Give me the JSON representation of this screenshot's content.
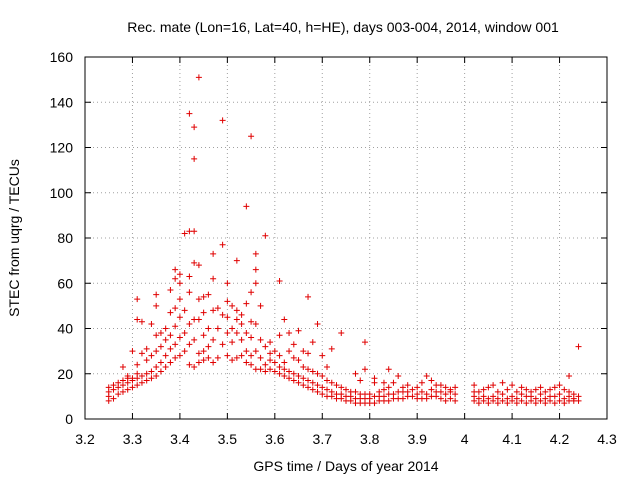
{
  "chart_data": {
    "type": "scatter",
    "title": "Rec. mate (Lon=16, Lat=40, h=HE), days 003-004, 2014, window 001",
    "xlabel": "GPS time / Days of year 2014",
    "ylabel": "STEC from uqrg / TECUs",
    "xlim": [
      3.2,
      4.3
    ],
    "ylim": [
      0,
      160
    ],
    "xticks": [
      3.2,
      3.3,
      3.4,
      3.5,
      3.6,
      3.7,
      3.8,
      3.9,
      4.0,
      4.1,
      4.2,
      4.3
    ],
    "xtick_labels": [
      "3.2",
      "3.3",
      "3.4",
      "3.5",
      "3.6",
      "3.7",
      "3.8",
      "3.9",
      "4",
      "4.1",
      "4.2",
      "4.3"
    ],
    "yticks": [
      0,
      20,
      40,
      60,
      80,
      100,
      120,
      140,
      160
    ],
    "ytick_labels": [
      "0",
      "20",
      "40",
      "60",
      "80",
      "100",
      "120",
      "140",
      "160"
    ],
    "grid": true,
    "marker": "+",
    "color": "#e00000",
    "points": [
      [
        3.25,
        8
      ],
      [
        3.25,
        10
      ],
      [
        3.25,
        12
      ],
      [
        3.25,
        14
      ],
      [
        3.26,
        9
      ],
      [
        3.26,
        13
      ],
      [
        3.26,
        15
      ],
      [
        3.27,
        11
      ],
      [
        3.27,
        14
      ],
      [
        3.27,
        16
      ],
      [
        3.28,
        12
      ],
      [
        3.28,
        15
      ],
      [
        3.28,
        17
      ],
      [
        3.28,
        23
      ],
      [
        3.29,
        13
      ],
      [
        3.29,
        16
      ],
      [
        3.29,
        18
      ],
      [
        3.29,
        19
      ],
      [
        3.3,
        14
      ],
      [
        3.3,
        17
      ],
      [
        3.3,
        18
      ],
      [
        3.3,
        30
      ],
      [
        3.31,
        15
      ],
      [
        3.31,
        18
      ],
      [
        3.31,
        20
      ],
      [
        3.31,
        24
      ],
      [
        3.31,
        44
      ],
      [
        3.31,
        53
      ],
      [
        3.32,
        16
      ],
      [
        3.32,
        19
      ],
      [
        3.32,
        29
      ],
      [
        3.32,
        43
      ],
      [
        3.33,
        17
      ],
      [
        3.33,
        20
      ],
      [
        3.33,
        26
      ],
      [
        3.33,
        31
      ],
      [
        3.34,
        18
      ],
      [
        3.34,
        21
      ],
      [
        3.34,
        28
      ],
      [
        3.34,
        42
      ],
      [
        3.35,
        19
      ],
      [
        3.35,
        23
      ],
      [
        3.35,
        30
      ],
      [
        3.35,
        37
      ],
      [
        3.35,
        50
      ],
      [
        3.35,
        55
      ],
      [
        3.36,
        21
      ],
      [
        3.36,
        25
      ],
      [
        3.36,
        32
      ],
      [
        3.36,
        38
      ],
      [
        3.37,
        23
      ],
      [
        3.37,
        28
      ],
      [
        3.37,
        35
      ],
      [
        3.37,
        40
      ],
      [
        3.38,
        25
      ],
      [
        3.38,
        31
      ],
      [
        3.38,
        37
      ],
      [
        3.38,
        47
      ],
      [
        3.38,
        57
      ],
      [
        3.39,
        27
      ],
      [
        3.39,
        33
      ],
      [
        3.39,
        41
      ],
      [
        3.39,
        49
      ],
      [
        3.39,
        62
      ],
      [
        3.39,
        66
      ],
      [
        3.4,
        28
      ],
      [
        3.4,
        36
      ],
      [
        3.4,
        45
      ],
      [
        3.4,
        53
      ],
      [
        3.4,
        60
      ],
      [
        3.4,
        64
      ],
      [
        3.41,
        30
      ],
      [
        3.41,
        38
      ],
      [
        3.41,
        48
      ],
      [
        3.41,
        82
      ],
      [
        3.42,
        24
      ],
      [
        3.42,
        33
      ],
      [
        3.42,
        42
      ],
      [
        3.42,
        56
      ],
      [
        3.42,
        63
      ],
      [
        3.42,
        83
      ],
      [
        3.42,
        135
      ],
      [
        3.43,
        23
      ],
      [
        3.43,
        35
      ],
      [
        3.43,
        44
      ],
      [
        3.43,
        69
      ],
      [
        3.43,
        83
      ],
      [
        3.43,
        115
      ],
      [
        3.43,
        129
      ],
      [
        3.44,
        25
      ],
      [
        3.44,
        29
      ],
      [
        3.44,
        44
      ],
      [
        3.44,
        53
      ],
      [
        3.44,
        68
      ],
      [
        3.44,
        151
      ],
      [
        3.45,
        26
      ],
      [
        3.45,
        30
      ],
      [
        3.45,
        37
      ],
      [
        3.45,
        47
      ],
      [
        3.45,
        54
      ],
      [
        3.46,
        27
      ],
      [
        3.46,
        32
      ],
      [
        3.46,
        40
      ],
      [
        3.46,
        55
      ],
      [
        3.47,
        25
      ],
      [
        3.47,
        35
      ],
      [
        3.47,
        48
      ],
      [
        3.47,
        62
      ],
      [
        3.47,
        73
      ],
      [
        3.48,
        27
      ],
      [
        3.48,
        40
      ],
      [
        3.48,
        49
      ],
      [
        3.49,
        33
      ],
      [
        3.49,
        46
      ],
      [
        3.49,
        77
      ],
      [
        3.49,
        132
      ],
      [
        3.5,
        28
      ],
      [
        3.5,
        38
      ],
      [
        3.5,
        45
      ],
      [
        3.5,
        52
      ],
      [
        3.5,
        60
      ],
      [
        3.51,
        26
      ],
      [
        3.51,
        34
      ],
      [
        3.51,
        40
      ],
      [
        3.51,
        50
      ],
      [
        3.52,
        27
      ],
      [
        3.52,
        38
      ],
      [
        3.52,
        44
      ],
      [
        3.52,
        48
      ],
      [
        3.52,
        70
      ],
      [
        3.53,
        28
      ],
      [
        3.53,
        35
      ],
      [
        3.53,
        42
      ],
      [
        3.53,
        46
      ],
      [
        3.54,
        25
      ],
      [
        3.54,
        30
      ],
      [
        3.54,
        38
      ],
      [
        3.54,
        51
      ],
      [
        3.54,
        94
      ],
      [
        3.55,
        24
      ],
      [
        3.55,
        28
      ],
      [
        3.55,
        36
      ],
      [
        3.55,
        43
      ],
      [
        3.55,
        56
      ],
      [
        3.55,
        125
      ],
      [
        3.56,
        22
      ],
      [
        3.56,
        30
      ],
      [
        3.56,
        42
      ],
      [
        3.56,
        60
      ],
      [
        3.56,
        66
      ],
      [
        3.56,
        73
      ],
      [
        3.57,
        22
      ],
      [
        3.57,
        27
      ],
      [
        3.57,
        35
      ],
      [
        3.57,
        50
      ],
      [
        3.58,
        21
      ],
      [
        3.58,
        24
      ],
      [
        3.58,
        32
      ],
      [
        3.58,
        81
      ],
      [
        3.59,
        22
      ],
      [
        3.59,
        26
      ],
      [
        3.59,
        29
      ],
      [
        3.59,
        34
      ],
      [
        3.6,
        21
      ],
      [
        3.6,
        25
      ],
      [
        3.6,
        30
      ],
      [
        3.61,
        20
      ],
      [
        3.61,
        23
      ],
      [
        3.61,
        28
      ],
      [
        3.61,
        37
      ],
      [
        3.61,
        61
      ],
      [
        3.62,
        19
      ],
      [
        3.62,
        22
      ],
      [
        3.62,
        25
      ],
      [
        3.62,
        44
      ],
      [
        3.63,
        18
      ],
      [
        3.63,
        21
      ],
      [
        3.63,
        30
      ],
      [
        3.63,
        38
      ],
      [
        3.64,
        17
      ],
      [
        3.64,
        20
      ],
      [
        3.64,
        27
      ],
      [
        3.64,
        33
      ],
      [
        3.65,
        16
      ],
      [
        3.65,
        19
      ],
      [
        3.65,
        26
      ],
      [
        3.65,
        39
      ],
      [
        3.66,
        15
      ],
      [
        3.66,
        18
      ],
      [
        3.66,
        23
      ],
      [
        3.66,
        30
      ],
      [
        3.67,
        14
      ],
      [
        3.67,
        17
      ],
      [
        3.67,
        22
      ],
      [
        3.67,
        29
      ],
      [
        3.67,
        54
      ],
      [
        3.68,
        13
      ],
      [
        3.68,
        16
      ],
      [
        3.68,
        21
      ],
      [
        3.68,
        34
      ],
      [
        3.69,
        12
      ],
      [
        3.69,
        15
      ],
      [
        3.69,
        20
      ],
      [
        3.69,
        42
      ],
      [
        3.7,
        11
      ],
      [
        3.7,
        14
      ],
      [
        3.7,
        19
      ],
      [
        3.7,
        28
      ],
      [
        3.71,
        10
      ],
      [
        3.71,
        13
      ],
      [
        3.71,
        17
      ],
      [
        3.71,
        23
      ],
      [
        3.72,
        10
      ],
      [
        3.72,
        12
      ],
      [
        3.72,
        16
      ],
      [
        3.72,
        31
      ],
      [
        3.73,
        9
      ],
      [
        3.73,
        11
      ],
      [
        3.73,
        15
      ],
      [
        3.74,
        9
      ],
      [
        3.74,
        11
      ],
      [
        3.74,
        14
      ],
      [
        3.74,
        38
      ],
      [
        3.75,
        8
      ],
      [
        3.75,
        10
      ],
      [
        3.75,
        13
      ],
      [
        3.76,
        8
      ],
      [
        3.76,
        10
      ],
      [
        3.76,
        12
      ],
      [
        3.77,
        7
      ],
      [
        3.77,
        9
      ],
      [
        3.77,
        12
      ],
      [
        3.77,
        20
      ],
      [
        3.78,
        7
      ],
      [
        3.78,
        9
      ],
      [
        3.78,
        11
      ],
      [
        3.78,
        17
      ],
      [
        3.79,
        7
      ],
      [
        3.79,
        9
      ],
      [
        3.79,
        11
      ],
      [
        3.79,
        22
      ],
      [
        3.79,
        34
      ],
      [
        3.8,
        7
      ],
      [
        3.8,
        9
      ],
      [
        3.8,
        11
      ],
      [
        3.81,
        7
      ],
      [
        3.81,
        10
      ],
      [
        3.81,
        16
      ],
      [
        3.81,
        18
      ],
      [
        3.82,
        8
      ],
      [
        3.82,
        10
      ],
      [
        3.82,
        12
      ],
      [
        3.83,
        8
      ],
      [
        3.83,
        10
      ],
      [
        3.83,
        13
      ],
      [
        3.83,
        16
      ],
      [
        3.84,
        8
      ],
      [
        3.84,
        11
      ],
      [
        3.84,
        14
      ],
      [
        3.84,
        22
      ],
      [
        3.85,
        9
      ],
      [
        3.85,
        11
      ],
      [
        3.85,
        16
      ],
      [
        3.86,
        9
      ],
      [
        3.86,
        12
      ],
      [
        3.86,
        19
      ],
      [
        3.87,
        9
      ],
      [
        3.87,
        12
      ],
      [
        3.87,
        14
      ],
      [
        3.88,
        10
      ],
      [
        3.88,
        12
      ],
      [
        3.88,
        15
      ],
      [
        3.89,
        10
      ],
      [
        3.89,
        13
      ],
      [
        3.9,
        9
      ],
      [
        3.9,
        11
      ],
      [
        3.9,
        14
      ],
      [
        3.91,
        9
      ],
      [
        3.91,
        12
      ],
      [
        3.91,
        16
      ],
      [
        3.92,
        9
      ],
      [
        3.92,
        11
      ],
      [
        3.92,
        19
      ],
      [
        3.93,
        10
      ],
      [
        3.93,
        13
      ],
      [
        3.93,
        17
      ],
      [
        3.94,
        10
      ],
      [
        3.94,
        12
      ],
      [
        3.94,
        15
      ],
      [
        3.95,
        9
      ],
      [
        3.95,
        12
      ],
      [
        3.95,
        15
      ],
      [
        3.96,
        8
      ],
      [
        3.96,
        11
      ],
      [
        3.96,
        14
      ],
      [
        3.97,
        9
      ],
      [
        3.97,
        12
      ],
      [
        3.97,
        13
      ],
      [
        3.98,
        8
      ],
      [
        3.98,
        11
      ],
      [
        3.98,
        14
      ],
      [
        4.02,
        8
      ],
      [
        4.02,
        10
      ],
      [
        4.02,
        12
      ],
      [
        4.02,
        15
      ],
      [
        4.03,
        7
      ],
      [
        4.03,
        9
      ],
      [
        4.03,
        12
      ],
      [
        4.04,
        8
      ],
      [
        4.04,
        10
      ],
      [
        4.04,
        13
      ],
      [
        4.05,
        7
      ],
      [
        4.05,
        9
      ],
      [
        4.05,
        14
      ],
      [
        4.06,
        8
      ],
      [
        4.06,
        10
      ],
      [
        4.06,
        15
      ],
      [
        4.07,
        7
      ],
      [
        4.07,
        9
      ],
      [
        4.07,
        12
      ],
      [
        4.08,
        8
      ],
      [
        4.08,
        11
      ],
      [
        4.08,
        16
      ],
      [
        4.09,
        7
      ],
      [
        4.09,
        9
      ],
      [
        4.09,
        13
      ],
      [
        4.1,
        8
      ],
      [
        4.1,
        10
      ],
      [
        4.1,
        15
      ],
      [
        4.11,
        7
      ],
      [
        4.11,
        9
      ],
      [
        4.11,
        12
      ],
      [
        4.12,
        8
      ],
      [
        4.12,
        11
      ],
      [
        4.12,
        14
      ],
      [
        4.13,
        7
      ],
      [
        4.13,
        10
      ],
      [
        4.13,
        13
      ],
      [
        4.14,
        8
      ],
      [
        4.14,
        10
      ],
      [
        4.14,
        12
      ],
      [
        4.15,
        7
      ],
      [
        4.15,
        9
      ],
      [
        4.15,
        13
      ],
      [
        4.16,
        8
      ],
      [
        4.16,
        11
      ],
      [
        4.16,
        14
      ],
      [
        4.17,
        7
      ],
      [
        4.17,
        9
      ],
      [
        4.17,
        12
      ],
      [
        4.18,
        8
      ],
      [
        4.18,
        10
      ],
      [
        4.18,
        13
      ],
      [
        4.19,
        7
      ],
      [
        4.19,
        10
      ],
      [
        4.19,
        14
      ],
      [
        4.2,
        8
      ],
      [
        4.2,
        11
      ],
      [
        4.2,
        15
      ],
      [
        4.21,
        7
      ],
      [
        4.21,
        9
      ],
      [
        4.21,
        13
      ],
      [
        4.22,
        8
      ],
      [
        4.22,
        10
      ],
      [
        4.22,
        12
      ],
      [
        4.22,
        19
      ],
      [
        4.23,
        8
      ],
      [
        4.23,
        9
      ],
      [
        4.23,
        11
      ],
      [
        4.24,
        8
      ],
      [
        4.24,
        10
      ],
      [
        4.24,
        32
      ]
    ]
  }
}
